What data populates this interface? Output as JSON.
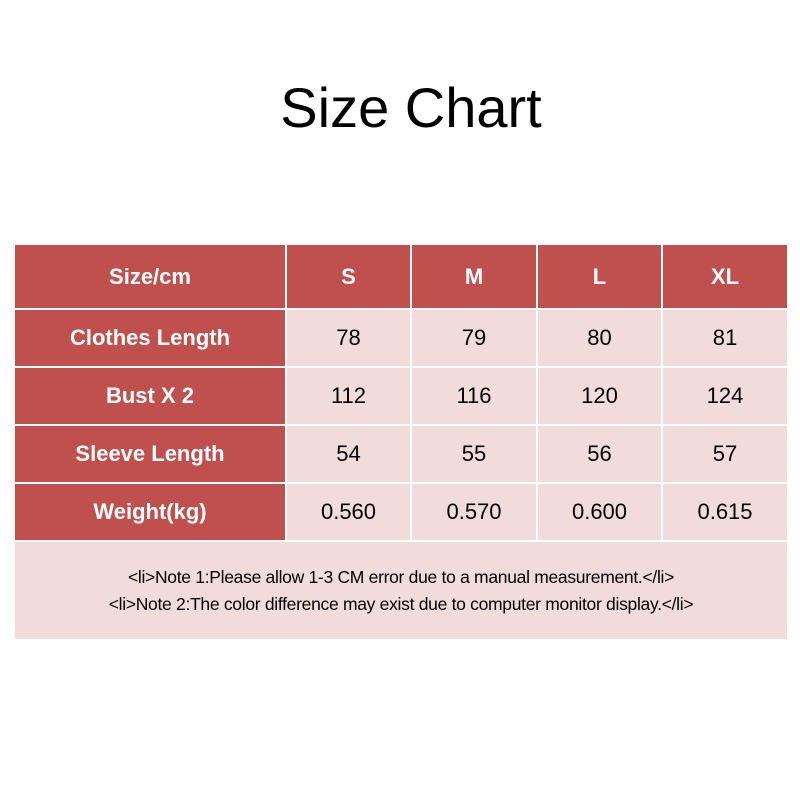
{
  "title": "Size Chart",
  "table": {
    "headers": [
      "Size/cm",
      "S",
      "M",
      "L",
      "XL"
    ],
    "rows": [
      {
        "label": "Clothes Length",
        "values": [
          "78",
          "79",
          "80",
          "81"
        ]
      },
      {
        "label": "Bust X 2",
        "values": [
          "112",
          "116",
          "120",
          "124"
        ]
      },
      {
        "label": "Sleeve Length",
        "values": [
          "54",
          "55",
          "56",
          "57"
        ]
      },
      {
        "label": "Weight(kg)",
        "values": [
          "0.560",
          "0.570",
          "0.600",
          "0.615"
        ]
      }
    ]
  },
  "notes": [
    "<li>Note 1:Please allow 1-3 CM error due to a manual measurement.</li>",
    "<li>Note 2:The color difference may exist due to computer monitor display.</li>"
  ],
  "colors": {
    "header": "#c0504d",
    "cell": "#f2dcdb"
  }
}
